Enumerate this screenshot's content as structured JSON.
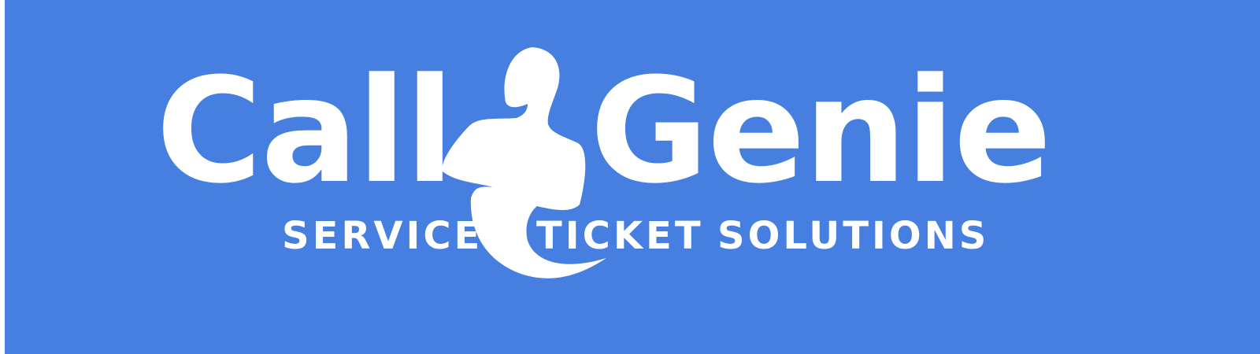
{
  "logo": {
    "word_left": "Call",
    "word_right": "Genie",
    "tagline_words": [
      "SERVICE",
      "TICKET",
      "SOLUTIONS"
    ],
    "figure_icon": "genie-silhouette-icon"
  },
  "colors": {
    "background": "#467fe0",
    "foreground": "#ffffff"
  }
}
